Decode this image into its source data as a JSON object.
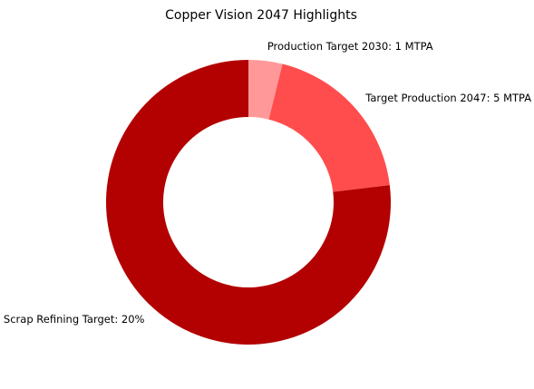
{
  "chart_data": {
    "type": "pie",
    "style": "donut",
    "title": "Copper Vision 2047 Highlights",
    "slices": [
      {
        "label": "Production Target 2030: 1 MTPA",
        "value": 1,
        "color": "#ff9999"
      },
      {
        "label": "Target Production 2047: 5 MTPA",
        "value": 5,
        "color": "#ff4d4d"
      },
      {
        "label": "Scrap Refining Target: 20%",
        "value": 20,
        "color": "#b30000"
      }
    ],
    "start_angle": "12 o'clock",
    "direction": "clockwise",
    "legend": "none"
  }
}
